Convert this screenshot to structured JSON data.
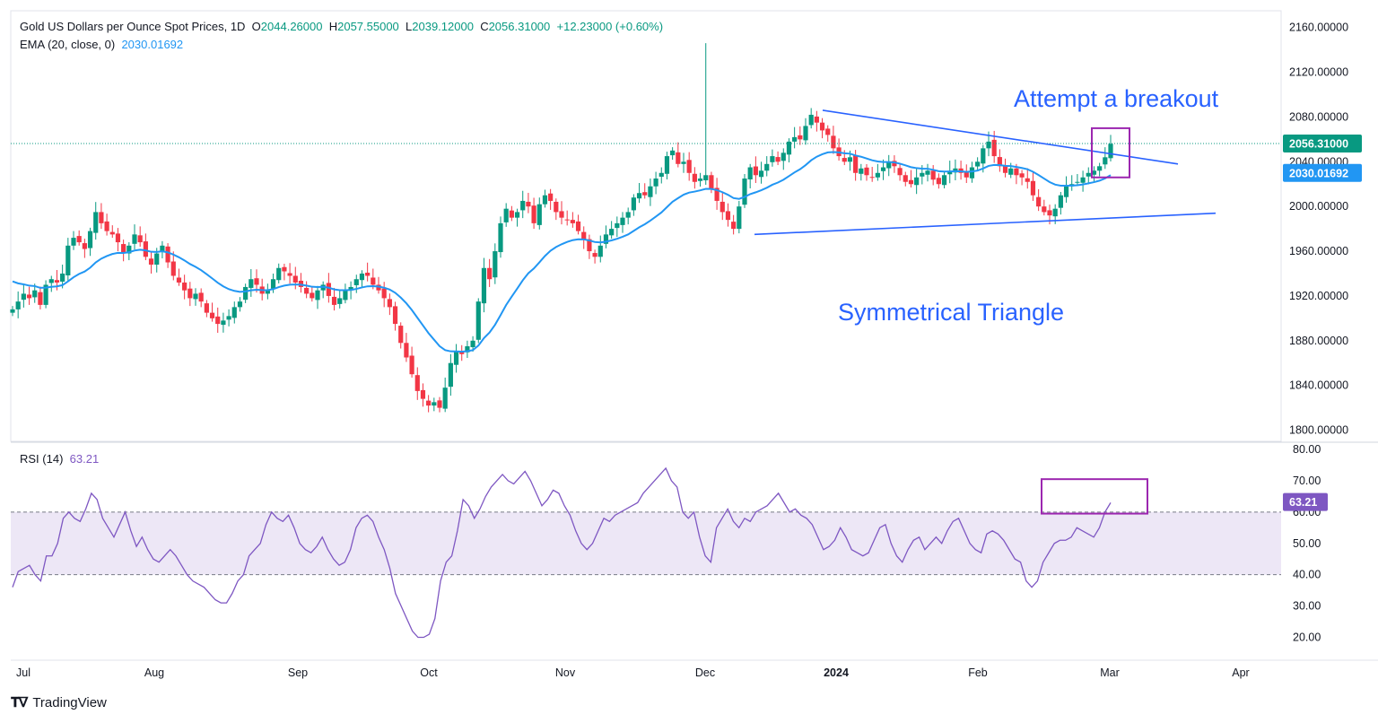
{
  "legend": {
    "title": "Gold US Dollars per Ounce Spot Prices, 1D",
    "open_label": "O",
    "open": "2044.26000",
    "high_label": "H",
    "high": "2057.55000",
    "low_label": "L",
    "low": "2039.12000",
    "close_label": "C",
    "close": "2056.31000",
    "change": "+12.23000 (+0.60%)",
    "ema_label": "EMA (20, close, 0)",
    "ema_value": "2030.01692",
    "rsi_label": "RSI (14)",
    "rsi_value": "63.21"
  },
  "brand": {
    "name": "TradingView",
    "logo_icon": "tradingview-logo-icon"
  },
  "colors": {
    "up": "#089981",
    "down": "#f23645",
    "ema": "#2196f3",
    "rsi": "#7e57c2",
    "trendline": "#2962ff",
    "box": "#9c27b0",
    "rsi_band": "#ede7f6"
  },
  "chart_data": [
    {
      "type": "candlestick",
      "ylim": [
        1790,
        2175
      ],
      "y_ticks": [
        "2160.00000",
        "2120.00000",
        "2080.00000",
        "2040.00000",
        "2000.00000",
        "1960.00000",
        "1920.00000",
        "1880.00000",
        "1840.00000",
        "1800.00000"
      ],
      "x_ticks": [
        "Jul",
        "Aug",
        "Sep",
        "Oct",
        "Nov",
        "Dec",
        "2024",
        "Feb",
        "Mar",
        "Apr"
      ],
      "current_price": "2056.31000",
      "current_ema": "2030.01692",
      "annotations": [
        "Attempt a breakout",
        "Symmetrical Triangle"
      ],
      "close_series": [
        1908,
        1915,
        1922,
        1918,
        1925,
        1912,
        1930,
        1935,
        1932,
        1940,
        1965,
        1972,
        1968,
        1962,
        1978,
        1995,
        1985,
        1978,
        1975,
        1968,
        1958,
        1965,
        1975,
        1968,
        1955,
        1948,
        1958,
        1965,
        1950,
        1938,
        1932,
        1925,
        1918,
        1922,
        1915,
        1905,
        1900,
        1895,
        1898,
        1902,
        1910,
        1915,
        1928,
        1935,
        1930,
        1922,
        1925,
        1935,
        1945,
        1942,
        1938,
        1932,
        1928,
        1922,
        1918,
        1925,
        1930,
        1920,
        1912,
        1918,
        1925,
        1928,
        1935,
        1940,
        1938,
        1930,
        1925,
        1918,
        1910,
        1895,
        1878,
        1865,
        1850,
        1835,
        1828,
        1822,
        1825,
        1820,
        1838,
        1860,
        1870,
        1868,
        1875,
        1880,
        1915,
        1945,
        1935,
        1960,
        1985,
        1998,
        1990,
        1995,
        2005,
        2000,
        1985,
        2002,
        2010,
        2005,
        1995,
        1990,
        1988,
        1985,
        1978,
        1970,
        1960,
        1955,
        1965,
        1975,
        1980,
        1985,
        1990,
        1995,
        2008,
        2012,
        2010,
        2018,
        2025,
        2030,
        2045,
        2050,
        2038,
        2040,
        2030,
        2022,
        2025,
        2028,
        2015,
        2005,
        1995,
        1988,
        1980,
        2000,
        2025,
        2035,
        2028,
        2032,
        2038,
        2045,
        2040,
        2048,
        2058,
        2062,
        2060,
        2072,
        2082,
        2075,
        2068,
        2064,
        2052,
        2045,
        2040,
        2044,
        2030,
        2034,
        2028,
        2026,
        2030,
        2035,
        2040,
        2036,
        2028,
        2022,
        2020,
        2026,
        2030,
        2032,
        2024,
        2020,
        2028,
        2032,
        2034,
        2030,
        2026,
        2035,
        2040,
        2052,
        2058,
        2045,
        2036,
        2030,
        2034,
        2028,
        2026,
        2022,
        2010,
        2000,
        1995,
        1992,
        1998,
        2010,
        2018,
        2020,
        2022,
        2026,
        2030,
        2032,
        2036,
        2044,
        2056
      ],
      "rsi": {
        "ylim": [
          15,
          82
        ],
        "y_ticks": [
          "80.00",
          "70.00",
          "60.00",
          "50.00",
          "40.00",
          "30.00",
          "20.00"
        ],
        "overbought": 60,
        "oversold": 40,
        "current": "63.21",
        "values": [
          36,
          41,
          42,
          43,
          40,
          38,
          46,
          46,
          50,
          58,
          60,
          58,
          57,
          61,
          66,
          64,
          58,
          55,
          52,
          56,
          60,
          54,
          49,
          52,
          48,
          45,
          44,
          46,
          48,
          46,
          43,
          40,
          38,
          37,
          36,
          34,
          32,
          31,
          31,
          34,
          38,
          40,
          46,
          48,
          50,
          56,
          60,
          58,
          57,
          59,
          55,
          50,
          48,
          47,
          49,
          52,
          48,
          45,
          43,
          44,
          48,
          55,
          58,
          59,
          57,
          52,
          48,
          42,
          34,
          30,
          26,
          22,
          20,
          20,
          21,
          26,
          38,
          44,
          46,
          54,
          64,
          62,
          58,
          61,
          65,
          68,
          70,
          72,
          70,
          69,
          71,
          73,
          70,
          66,
          62,
          64,
          67,
          66,
          62,
          59,
          54,
          50,
          48,
          50,
          54,
          58,
          57,
          59,
          60,
          61,
          62,
          63,
          66,
          68,
          70,
          72,
          74,
          70,
          68,
          60,
          58,
          60,
          52,
          46,
          44,
          55,
          58,
          61,
          57,
          55,
          58,
          57,
          60,
          61,
          62,
          64,
          66,
          63,
          60,
          61,
          59,
          58,
          56,
          52,
          48,
          49,
          51,
          55,
          52,
          48,
          47,
          46,
          47,
          51,
          55,
          56,
          50,
          46,
          44,
          48,
          51,
          52,
          48,
          50,
          52,
          50,
          54,
          57,
          58,
          54,
          50,
          48,
          47,
          53,
          54,
          53,
          51,
          48,
          45,
          44,
          38,
          36,
          38,
          44,
          47,
          50,
          51,
          51,
          52,
          55,
          54,
          53,
          52,
          55,
          60,
          63
        ]
      }
    }
  ]
}
